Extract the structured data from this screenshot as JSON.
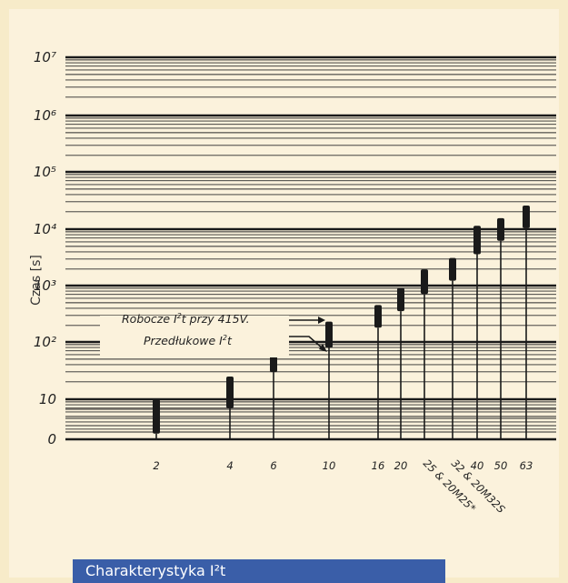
{
  "caption": "Charakterystyka I²t",
  "colors": {
    "background": "#f7ebc9",
    "caption_bar": "#3a5ea8",
    "marks": "#1a1a1a"
  },
  "chart_data": {
    "type": "range_bar",
    "title": "",
    "xlabel": "",
    "ylabel": "Czas [s]",
    "y_scale": "log",
    "y_ticks": [
      "0",
      "10",
      "10²",
      "10³",
      "10⁴",
      "10⁵",
      "10⁶",
      "10⁷"
    ],
    "x_ticks": [
      "2",
      "4",
      "6",
      "10",
      "16",
      "20",
      "25 & 20M25*",
      "32 & 20M32S",
      "40",
      "50",
      "63"
    ],
    "grid": true,
    "annotations": [
      "Robocze I²t przy 415V.",
      "Przedłukowe I²t"
    ],
    "series": [
      {
        "category": "2",
        "low": 2.5,
        "high": 10
      },
      {
        "category": "4",
        "low": 7,
        "high": 25
      },
      {
        "category": "6",
        "low": 30,
        "high": 90
      },
      {
        "category": "10",
        "low": 80,
        "high": 230
      },
      {
        "category": "16",
        "low": 180,
        "high": 450
      },
      {
        "category": "20",
        "low": 350,
        "high": 900
      },
      {
        "category": "25 & 20M25*",
        "low": 700,
        "high": 1900
      },
      {
        "category": "32 & 20M32S",
        "low": 1200,
        "high": 3000
      },
      {
        "category": "40",
        "low": 3500,
        "high": 11000
      },
      {
        "category": "50",
        "low": 6000,
        "high": 15000
      },
      {
        "category": "63",
        "low": 10000,
        "high": 25000
      }
    ]
  }
}
